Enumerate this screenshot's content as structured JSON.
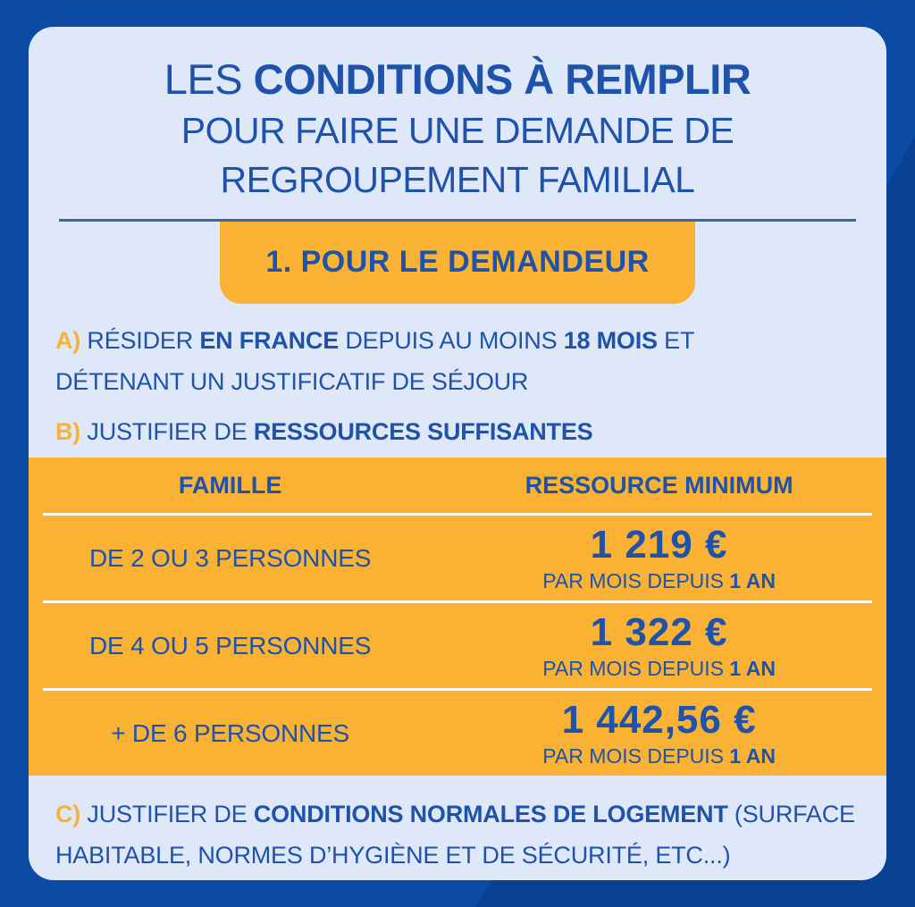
{
  "colors": {
    "background": "#0C4BA5",
    "background_dark_accent": "#08418F",
    "card_background": "#DEE8F9",
    "accent_yellow": "#F9B233",
    "text_blue": "#1E52AB"
  },
  "title": {
    "line1_regular": "LES ",
    "line1_bold": "CONDITIONS À REMPLIR",
    "line2": "POUR FAIRE UNE DEMANDE DE",
    "line3": "REGROUPEMENT FAMILIAL"
  },
  "badge": {
    "label": "1. POUR LE DEMANDEUR"
  },
  "section_a": {
    "letter": "A)",
    "seg_regular1": " RÉSIDER ",
    "seg_bold1": "EN FRANCE",
    "seg_regular2": " DEPUIS AU MOINS ",
    "seg_bold2": "18 MOIS",
    "seg_regular3": " ET",
    "line2": "DÉTENANT UN JUSTIFICATIF DE SÉJOUR"
  },
  "section_b": {
    "letter": "B)",
    "seg_regular": " JUSTIFIER DE ",
    "seg_bold": "RESSOURCES SUFFISANTES"
  },
  "table": {
    "header_family": "FAMILLE",
    "header_resource": "RESSOURCE MINIMUM",
    "rows": [
      {
        "family": "DE 2 OU 3 PERSONNES",
        "amount": "1 219 €",
        "period_regular": "PAR MOIS DEPUIS ",
        "period_bold": "1 AN"
      },
      {
        "family": "DE 4 OU 5 PERSONNES",
        "amount": "1 322 €",
        "period_regular": "PAR MOIS DEPUIS ",
        "period_bold": "1 AN"
      },
      {
        "family": "+ DE 6 PERSONNES",
        "amount": "1 442,56 €",
        "period_regular": "PAR MOIS DEPUIS ",
        "period_bold": "1 AN"
      }
    ]
  },
  "section_c": {
    "letter": "C)",
    "seg_regular1": " JUSTIFIER DE ",
    "seg_bold": "CONDITIONS NORMALES DE LOGEMENT",
    "seg_regular2": " (SURFACE",
    "line2": "HABITABLE, NORMES D’HYGIÈNE ET DE SÉCURITÉ, ETC...)"
  }
}
